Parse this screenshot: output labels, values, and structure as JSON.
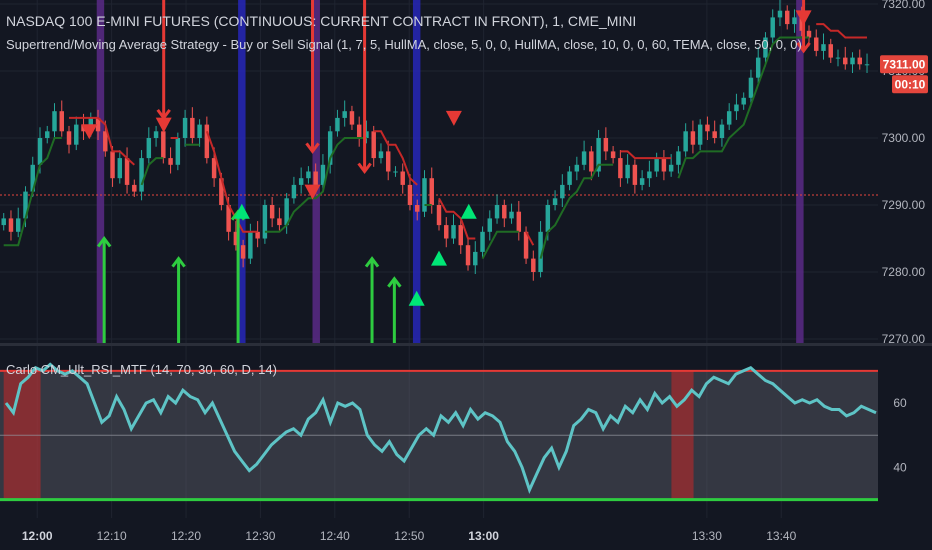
{
  "chart_data": [
    {
      "type": "candlestick",
      "title": "NASDAQ 100 E-MINI FUTURES (CONTINUOUS: CURRENT CONTRACT IN FRONT), 1, CME_MINI",
      "subtitle": "Supertrend/Moving Average Strategy - Buy or Sell Signal (1, 7, 5, HullMA, close, 5, 0, 0, HullMA, close, 10, 0, 0, 60, TEMA, close, 50, 0, 0)",
      "y_ticks": [
        "7270.00",
        "7280.00",
        "7290.00",
        "7300.00",
        "7310.00",
        "7320.00"
      ],
      "ylim": [
        7270,
        7320
      ],
      "last_price": "7311.00",
      "countdown": "00:10",
      "reference_line": 7291.5,
      "x_ticks": [
        "12:00",
        "12:10",
        "12:20",
        "12:30",
        "12:40",
        "12:50",
        "13:00",
        "13:30",
        "13:40"
      ],
      "x_range_minutes": [
        -5,
        113
      ],
      "bands": [
        {
          "from": 8,
          "to": 9,
          "color": "purple"
        },
        {
          "from": 27,
          "to": 28,
          "color": "blue"
        },
        {
          "from": 37,
          "to": 38,
          "color": "purple"
        },
        {
          "from": 50.5,
          "to": 51.5,
          "color": "blue"
        },
        {
          "from": 102,
          "to": 103,
          "color": "purple"
        }
      ],
      "candles_close": [
        7288,
        7286,
        7288,
        7292,
        7296,
        7300,
        7301,
        7304,
        7301,
        7299,
        7302,
        7301,
        7303,
        7301,
        7298,
        7294,
        7297,
        7293,
        7292,
        7297,
        7300,
        7301,
        7297,
        7296,
        7300,
        7303,
        7300,
        7302,
        7297,
        7294,
        7290,
        7286,
        7284,
        7282,
        7286,
        7285,
        7290,
        7288,
        7287,
        7291,
        7293,
        7294,
        7295,
        7293,
        7296,
        7301,
        7303,
        7304,
        7302,
        7300,
        7301,
        7297,
        7298,
        7295,
        7295,
        7293,
        7290,
        7289,
        7294,
        7290,
        7287,
        7285,
        7287,
        7284,
        7281,
        7283,
        7286,
        7288,
        7290,
        7288,
        7289,
        7286,
        7282,
        7280,
        7286,
        7290,
        7291,
        7293,
        7295,
        7296,
        7298,
        7295,
        7300,
        7298,
        7297,
        7294,
        7296,
        7293,
        7294,
        7295,
        7297,
        7295,
        7296,
        7298,
        7301,
        7299,
        7302,
        7301,
        7300,
        7302,
        7304,
        7305,
        7306,
        7309,
        7312,
        7315,
        7318,
        7319,
        7317,
        7318,
        7316,
        7315,
        7313,
        7314,
        7312,
        7312,
        7311,
        7312,
        7311,
        7311
      ],
      "buy_arrows": [
        {
          "t": 9,
          "price": 7285
        },
        {
          "t": 19,
          "price": 7282
        },
        {
          "t": 27,
          "price": 7289
        },
        {
          "t": 45,
          "price": 7282
        },
        {
          "t": 48,
          "price": 7279
        }
      ],
      "sell_arrows": [
        {
          "t": 17,
          "price": 7303
        },
        {
          "t": 37,
          "price": 7298
        },
        {
          "t": 44,
          "price": 7295
        },
        {
          "t": 103,
          "price": 7313
        }
      ],
      "buy_triangles": [
        {
          "t": 27.5,
          "price": 7289
        },
        {
          "t": 51,
          "price": 7276
        },
        {
          "t": 54,
          "price": 7282
        },
        {
          "t": 58,
          "price": 7289
        }
      ],
      "sell_triangles": [
        {
          "t": 7,
          "price": 7301
        },
        {
          "t": 17,
          "price": 7302
        },
        {
          "t": 37,
          "price": 7292
        },
        {
          "t": 56,
          "price": 7303
        },
        {
          "t": 103,
          "price": 7318
        }
      ]
    },
    {
      "type": "line",
      "title": "Carlo CM_Ult_RSI_MTF (14, 70, 30, 60, D, 14)",
      "y_ticks": [
        "40",
        "60"
      ],
      "ylim": [
        28,
        74
      ],
      "upper_level": 70,
      "lower_level": 30,
      "mid_level": 50,
      "overbought_bands": [
        {
          "from": 0.5,
          "to": 5.5
        },
        {
          "from": 91,
          "to": 94
        }
      ],
      "values": [
        60,
        57,
        66,
        68,
        71,
        70,
        72,
        70,
        69,
        70,
        68,
        66,
        60,
        54,
        56,
        62,
        58,
        52,
        56,
        60,
        61,
        57,
        62,
        60,
        64,
        62,
        61,
        57,
        60,
        55,
        50,
        45,
        42,
        39,
        41,
        44,
        47,
        49,
        51,
        52,
        50,
        55,
        57,
        61,
        54,
        60,
        59,
        60,
        58,
        50,
        47,
        45,
        48,
        44,
        42,
        46,
        50,
        52,
        50,
        56,
        54,
        57,
        53,
        58,
        55,
        57,
        56,
        54,
        48,
        45,
        40,
        33,
        38,
        43,
        46,
        40,
        45,
        53,
        55,
        58,
        57,
        52,
        56,
        54,
        59,
        57,
        61,
        58,
        63,
        60,
        62,
        59,
        61,
        64,
        62,
        66,
        68,
        67,
        66,
        69,
        70,
        71,
        69,
        67,
        66,
        64,
        62,
        60,
        61,
        60,
        61,
        59,
        58,
        58,
        56,
        57,
        59,
        58,
        57
      ]
    }
  ]
}
